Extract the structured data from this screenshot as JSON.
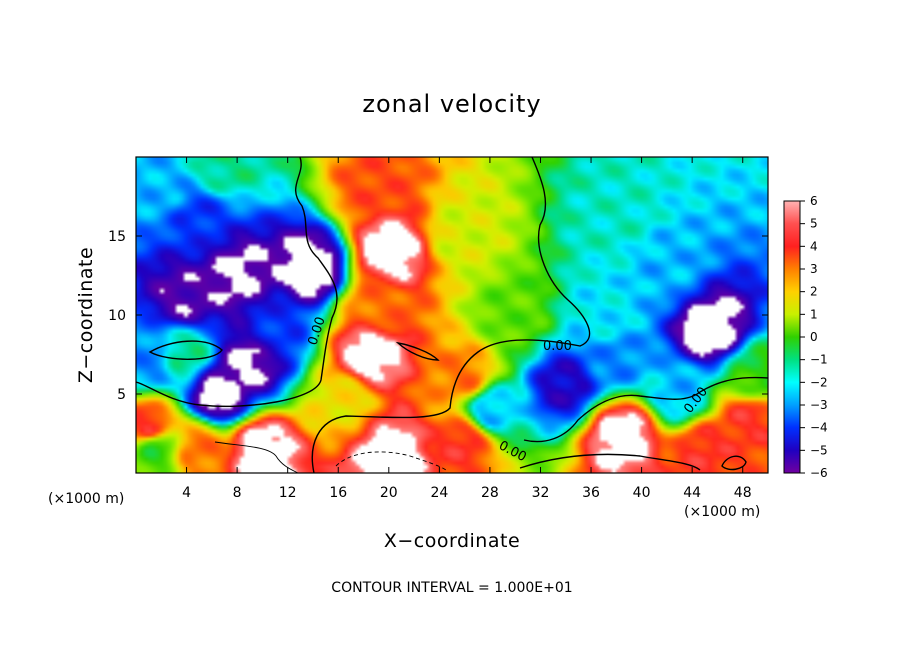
{
  "chart_data": {
    "type": "heatmap",
    "title": "zonal velocity",
    "xlabel": "X−coordinate",
    "ylabel": "Z−coordinate",
    "x_multiplier": "(×1000 m)",
    "z_multiplier": "(×1000 m)",
    "xlim": [
      0,
      50
    ],
    "ylim": [
      0,
      20
    ],
    "x_ticks": [
      4,
      8,
      12,
      16,
      20,
      24,
      28,
      32,
      36,
      40,
      44,
      48
    ],
    "y_ticks": [
      5,
      10,
      15
    ],
    "colorbar": {
      "range": [
        -6,
        6
      ],
      "ticks": [
        6,
        5,
        4,
        3,
        2,
        1,
        0,
        -1,
        -2,
        -3,
        -4,
        -5,
        -6
      ],
      "tick_labels": [
        "6",
        "5",
        "4",
        "3",
        "2",
        "1",
        "0",
        "−1",
        "−2",
        "−3",
        "−4",
        "−5",
        "−6"
      ],
      "out_of_range_color": "#ffffff"
    },
    "contour_note": "CONTOUR INTERVAL = 1.000E+01",
    "contour_labels": [
      "0.00",
      "0.00",
      "0.00",
      "0.00"
    ],
    "grid": false,
    "features": [
      {
        "x": 14,
        "z": 13,
        "value": -7
      },
      {
        "x": 8,
        "z": 12.5,
        "value": -6.5
      },
      {
        "x": 4,
        "z": 11,
        "value": -6
      },
      {
        "x": 5,
        "z": 16,
        "value": -4
      },
      {
        "x": 2,
        "z": 18,
        "value": -2.5
      },
      {
        "x": 7,
        "z": 19.5,
        "value": -1
      },
      {
        "x": 11,
        "z": 9,
        "value": -4
      },
      {
        "x": 9,
        "z": 7,
        "value": -6.5
      },
      {
        "x": 6.5,
        "z": 5,
        "value": -7
      },
      {
        "x": 4,
        "z": 7.5,
        "value": -1
      },
      {
        "x": 1,
        "z": 7,
        "value": -3
      },
      {
        "x": 20,
        "z": 14,
        "value": 7
      },
      {
        "x": 19,
        "z": 18,
        "value": 4.5
      },
      {
        "x": 19,
        "z": 10.5,
        "value": 4
      },
      {
        "x": 18.5,
        "z": 7.5,
        "value": 7
      },
      {
        "x": 16.5,
        "z": 4.5,
        "value": 2.5
      },
      {
        "x": 26,
        "z": 15,
        "value": 2
      },
      {
        "x": 30,
        "z": 10,
        "value": 0.5
      },
      {
        "x": 26,
        "z": 6,
        "value": 4
      },
      {
        "x": 38,
        "z": 16,
        "value": -1.5
      },
      {
        "x": 42,
        "z": 13,
        "value": -2.5
      },
      {
        "x": 45.5,
        "z": 9,
        "value": -7
      },
      {
        "x": 37,
        "z": 10,
        "value": -2
      },
      {
        "x": 38,
        "z": 7,
        "value": -3
      },
      {
        "x": 34,
        "z": 5.5,
        "value": -5
      },
      {
        "x": 43,
        "z": 5,
        "value": -2.5
      },
      {
        "x": 49,
        "z": 6,
        "value": 0
      },
      {
        "x": 28,
        "z": 4,
        "value": -2.5
      },
      {
        "x": 10,
        "z": 1.5,
        "value": 7
      },
      {
        "x": 5,
        "z": 1.5,
        "value": 4
      },
      {
        "x": 1,
        "z": 3,
        "value": 5
      },
      {
        "x": 20,
        "z": 1.2,
        "value": 7
      },
      {
        "x": 26,
        "z": 2,
        "value": 5
      },
      {
        "x": 38.5,
        "z": 2.5,
        "value": 7
      },
      {
        "x": 45,
        "z": 1.5,
        "value": 5
      },
      {
        "x": 48.5,
        "z": 3.5,
        "value": 5
      },
      {
        "x": 1.5,
        "z": 1.5,
        "value": 0
      }
    ]
  }
}
